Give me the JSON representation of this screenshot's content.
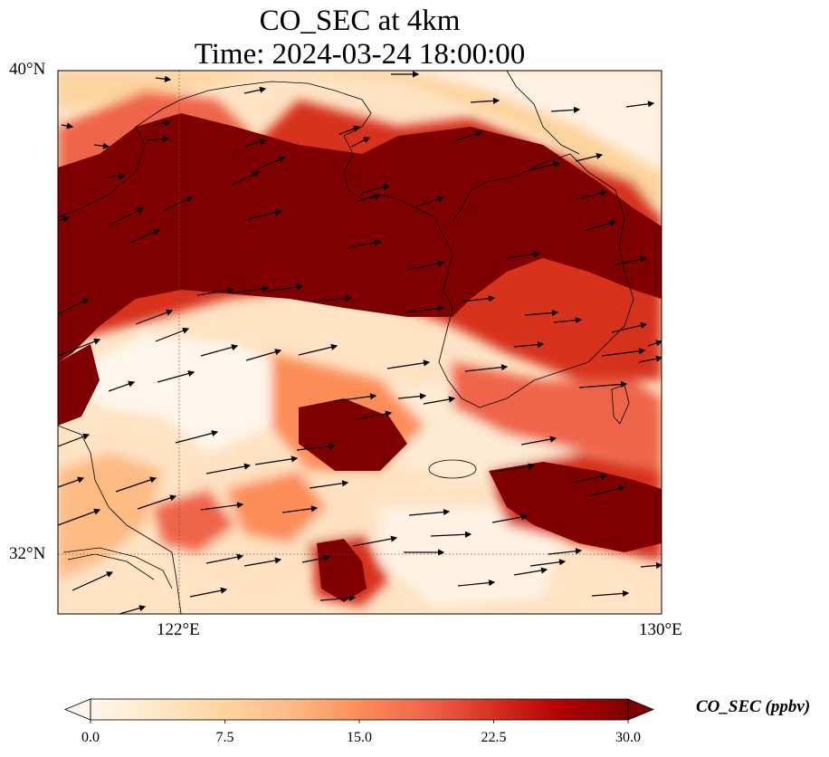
{
  "title": {
    "line1": "CO_SEC at 4km",
    "line2": "Time: 2024-03-24 18:00:00"
  },
  "map": {
    "lat_range": [
      31,
      40
    ],
    "lon_range": [
      120,
      130
    ],
    "lat_ticks": [
      "40°N",
      "32°N"
    ],
    "lon_ticks": [
      "122°E",
      "130°E"
    ],
    "gridlines": "dotted",
    "field": "CO_SEC concentration field (ppbv) with wind vectors"
  },
  "colorbar": {
    "label": "CO_SEC (ppbv)",
    "min": 0.0,
    "max": 30.0,
    "extend": "both",
    "ticks": [
      "0.0",
      "7.5",
      "15.0",
      "22.5",
      "30.0"
    ],
    "colormap": "OrRd",
    "colors": [
      "#fff7ec",
      "#fee8c8",
      "#fdd49e",
      "#fdbb84",
      "#fc8d59",
      "#ef6548",
      "#d7301f",
      "#b30000",
      "#7f0000"
    ]
  }
}
